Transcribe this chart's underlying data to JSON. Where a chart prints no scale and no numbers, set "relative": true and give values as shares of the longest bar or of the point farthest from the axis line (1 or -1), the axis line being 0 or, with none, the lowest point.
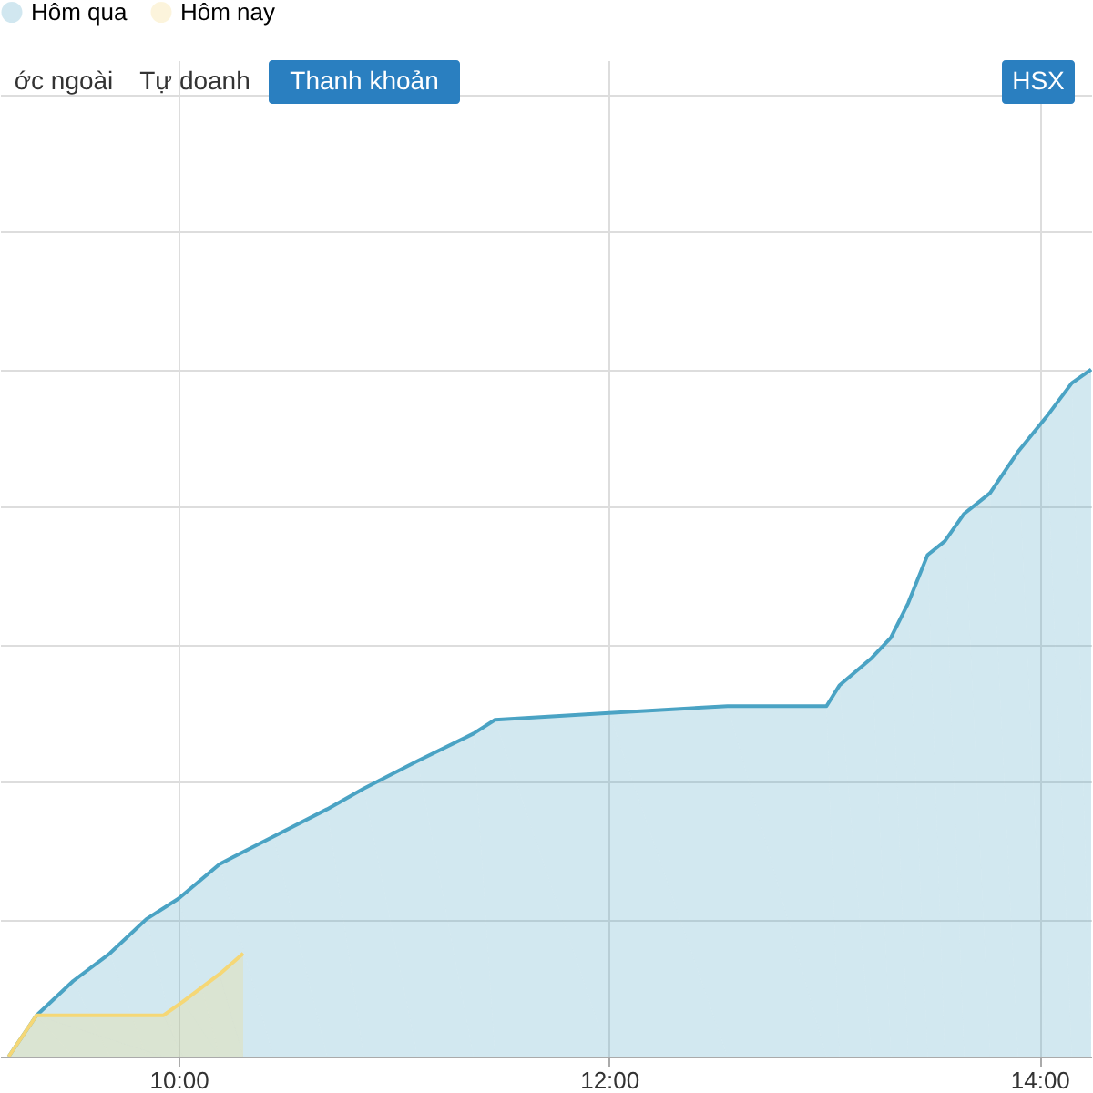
{
  "chart_data": {
    "type": "area",
    "relative": true,
    "series": [
      {
        "name": "Hôm qua",
        "color": "#4aa3c4",
        "x": [
          9.21,
          9.34,
          9.51,
          9.68,
          9.85,
          10.0,
          10.19,
          10.44,
          10.69,
          10.86,
          11.11,
          11.37,
          11.47,
          12.0,
          12.55,
          13.01,
          13.07,
          13.22,
          13.31,
          13.39,
          13.48,
          13.56,
          13.65,
          13.77,
          13.9,
          14.03,
          14.15,
          14.24
        ],
        "values": [
          0,
          0.06,
          0.11,
          0.15,
          0.2,
          0.23,
          0.28,
          0.32,
          0.36,
          0.39,
          0.43,
          0.47,
          0.49,
          0.5,
          0.51,
          0.51,
          0.54,
          0.58,
          0.61,
          0.66,
          0.73,
          0.75,
          0.79,
          0.82,
          0.88,
          0.93,
          0.98,
          1
        ]
      },
      {
        "name": "Hôm nay",
        "color": "#f5d776",
        "x": [
          9.21,
          9.34,
          9.93,
          10.02,
          10.19,
          10.3
        ],
        "values": [
          0,
          0.06,
          0.06,
          0.08,
          0.12,
          0.15
        ]
      }
    ],
    "xlim": [
      9.17,
      14.24
    ],
    "xticks": [
      {
        "value": 10,
        "label": "10:00"
      },
      {
        "value": 12,
        "label": "12:00"
      },
      {
        "value": 14,
        "label": "14:00"
      }
    ],
    "grid": true,
    "legend": "top",
    "marker": "none",
    "line_style": "solid",
    "annotations": [
      "ớc ngoài",
      "Tự doanh",
      "Thanh khoản",
      "HSX"
    ]
  }
}
